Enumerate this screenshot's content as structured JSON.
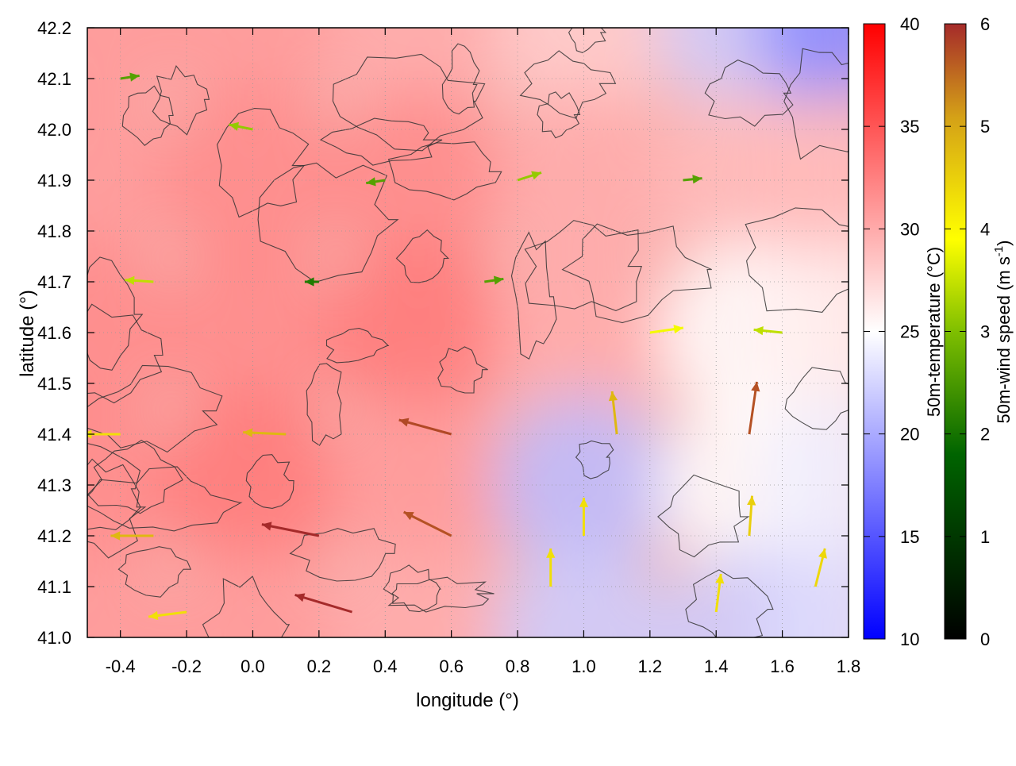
{
  "chart_data": {
    "type": "heatmap",
    "xlabel": "longitude (°)",
    "ylabel": "latitude (°)",
    "xlim": [
      -0.5,
      1.8
    ],
    "ylim": [
      41.0,
      42.2
    ],
    "xticks": [
      "-0.4",
      "-0.2",
      "0.0",
      "0.2",
      "0.4",
      "0.6",
      "0.8",
      "1.0",
      "1.2",
      "1.4",
      "1.6",
      "1.8"
    ],
    "xtick_values": [
      -0.4,
      -0.2,
      0.0,
      0.2,
      0.4,
      0.6,
      0.8,
      1.0,
      1.2,
      1.4,
      1.6,
      1.8
    ],
    "yticks": [
      "41.0",
      "41.1",
      "41.2",
      "41.3",
      "41.4",
      "41.5",
      "41.6",
      "41.7",
      "41.8",
      "41.9",
      "42.0",
      "42.1",
      "42.2"
    ],
    "ytick_values": [
      41.0,
      41.1,
      41.2,
      41.3,
      41.4,
      41.5,
      41.6,
      41.7,
      41.8,
      41.9,
      42.0,
      42.1,
      42.2
    ],
    "grid": true,
    "temperature_colorbar": {
      "label": "50m-temperature (°C)",
      "range": [
        10,
        40
      ],
      "ticks": [
        "10",
        "15",
        "20",
        "25",
        "30",
        "35",
        "40"
      ],
      "tick_values": [
        10,
        15,
        20,
        25,
        30,
        35,
        40
      ],
      "colors": [
        "#0000ff",
        "#ffffff",
        "#ff0000"
      ]
    },
    "wind_colorbar": {
      "label_main": "50m-wind speed (m s",
      "label_sup": "-1",
      "label_end": ")",
      "range": [
        0,
        6
      ],
      "ticks": [
        "0",
        "1",
        "2",
        "3",
        "4",
        "5",
        "6"
      ],
      "tick_values": [
        0,
        1,
        2,
        3,
        4,
        5,
        6
      ],
      "colors": [
        "#000000",
        "#006400",
        "#7fbf00",
        "#ffff00",
        "#d4a017",
        "#a52a2a"
      ]
    },
    "temperature_field": [
      {
        "lon": -0.5,
        "lat": 42.2,
        "t": 31
      },
      {
        "lon": 0.0,
        "lat": 42.2,
        "t": 31
      },
      {
        "lon": 0.5,
        "lat": 42.2,
        "t": 30
      },
      {
        "lon": 1.0,
        "lat": 42.2,
        "t": 28
      },
      {
        "lon": 1.5,
        "lat": 42.2,
        "t": 22
      },
      {
        "lon": 1.8,
        "lat": 42.2,
        "t": 18
      },
      {
        "lon": -0.5,
        "lat": 41.9,
        "t": 31
      },
      {
        "lon": 0.0,
        "lat": 41.9,
        "t": 32
      },
      {
        "lon": 0.5,
        "lat": 41.9,
        "t": 32
      },
      {
        "lon": 1.0,
        "lat": 41.9,
        "t": 30
      },
      {
        "lon": 1.5,
        "lat": 41.9,
        "t": 29
      },
      {
        "lon": 1.8,
        "lat": 41.9,
        "t": 29
      },
      {
        "lon": -0.5,
        "lat": 41.6,
        "t": 32
      },
      {
        "lon": 0.0,
        "lat": 41.6,
        "t": 32
      },
      {
        "lon": 0.5,
        "lat": 41.6,
        "t": 33
      },
      {
        "lon": 1.0,
        "lat": 41.6,
        "t": 30
      },
      {
        "lon": 1.5,
        "lat": 41.6,
        "t": 25
      },
      {
        "lon": 1.8,
        "lat": 41.6,
        "t": 26
      },
      {
        "lon": -0.5,
        "lat": 41.3,
        "t": 32
      },
      {
        "lon": 0.0,
        "lat": 41.3,
        "t": 33
      },
      {
        "lon": 0.5,
        "lat": 41.3,
        "t": 31
      },
      {
        "lon": 1.0,
        "lat": 41.3,
        "t": 21
      },
      {
        "lon": 1.5,
        "lat": 41.3,
        "t": 25
      },
      {
        "lon": 1.8,
        "lat": 41.3,
        "t": 24
      },
      {
        "lon": -0.5,
        "lat": 41.0,
        "t": 31
      },
      {
        "lon": 0.0,
        "lat": 41.0,
        "t": 31
      },
      {
        "lon": 0.5,
        "lat": 41.0,
        "t": 30
      },
      {
        "lon": 1.0,
        "lat": 41.0,
        "t": 22
      },
      {
        "lon": 1.5,
        "lat": 41.0,
        "t": 22
      },
      {
        "lon": 1.8,
        "lat": 41.0,
        "t": 23
      }
    ],
    "wind_field": [
      {
        "lon": -0.4,
        "lat": 42.1,
        "u": 2.0,
        "v": 0.3,
        "speed": 2.0
      },
      {
        "lon": 0.0,
        "lat": 42.0,
        "u": -2.5,
        "v": 0.5,
        "speed": 2.6
      },
      {
        "lon": 0.4,
        "lat": 41.9,
        "u": -2.0,
        "v": -0.3,
        "speed": 2.0
      },
      {
        "lon": 0.8,
        "lat": 41.9,
        "u": 2.5,
        "v": 0.8,
        "speed": 2.6
      },
      {
        "lon": 1.3,
        "lat": 41.9,
        "u": 2.0,
        "v": 0.2,
        "speed": 2.0
      },
      {
        "lon": -0.3,
        "lat": 41.7,
        "u": -3.0,
        "v": 0.2,
        "speed": 3.0
      },
      {
        "lon": 0.2,
        "lat": 41.7,
        "u": -1.5,
        "v": 0.0,
        "speed": 1.5
      },
      {
        "lon": 0.7,
        "lat": 41.7,
        "u": 2.0,
        "v": 0.3,
        "speed": 2.0
      },
      {
        "lon": 1.2,
        "lat": 41.6,
        "u": 3.5,
        "v": 0.5,
        "speed": 3.5
      },
      {
        "lon": 1.6,
        "lat": 41.6,
        "u": -3.0,
        "v": 0.3,
        "speed": 3.0
      },
      {
        "lon": -0.4,
        "lat": 41.4,
        "u": -4.0,
        "v": 0.0,
        "speed": 4.0
      },
      {
        "lon": 0.1,
        "lat": 41.4,
        "u": -4.5,
        "v": 0.2,
        "speed": 4.5
      },
      {
        "lon": 0.6,
        "lat": 41.4,
        "u": -5.5,
        "v": 1.5,
        "speed": 5.7
      },
      {
        "lon": 1.1,
        "lat": 41.4,
        "u": -0.5,
        "v": 4.5,
        "speed": 4.5
      },
      {
        "lon": 1.5,
        "lat": 41.4,
        "u": 0.8,
        "v": 5.5,
        "speed": 5.6
      },
      {
        "lon": -0.3,
        "lat": 41.2,
        "u": -4.5,
        "v": 0.0,
        "speed": 4.5
      },
      {
        "lon": 0.2,
        "lat": 41.2,
        "u": -6.0,
        "v": 1.2,
        "speed": 6.1
      },
      {
        "lon": 0.6,
        "lat": 41.2,
        "u": -5.0,
        "v": 2.5,
        "speed": 5.6
      },
      {
        "lon": 1.0,
        "lat": 41.2,
        "u": 0.0,
        "v": 4.0,
        "speed": 4.0
      },
      {
        "lon": 1.5,
        "lat": 41.2,
        "u": 0.3,
        "v": 4.2,
        "speed": 4.2
      },
      {
        "lon": -0.2,
        "lat": 41.05,
        "u": -4.0,
        "v": -0.5,
        "speed": 4.0
      },
      {
        "lon": 0.3,
        "lat": 41.05,
        "u": -6.0,
        "v": 1.8,
        "speed": 6.3
      },
      {
        "lon": 0.9,
        "lat": 41.1,
        "u": 0.0,
        "v": 4.0,
        "speed": 4.0
      },
      {
        "lon": 1.4,
        "lat": 41.05,
        "u": 0.5,
        "v": 4.0,
        "speed": 4.0
      },
      {
        "lon": 1.7,
        "lat": 41.1,
        "u": 1.0,
        "v": 4.0,
        "speed": 4.1
      }
    ]
  }
}
